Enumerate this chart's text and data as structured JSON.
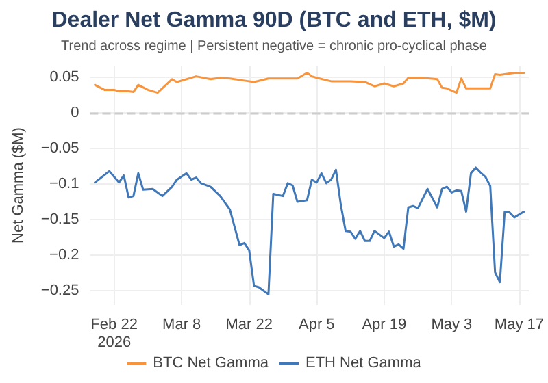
{
  "chart_data": {
    "type": "line",
    "title": "Dealer Net Gamma 90D (BTC and ETH, $M)",
    "subtitle": "Trend across regime | Persistent negative = chronic pro-cyclical phase",
    "ylabel": "Net Gamma ($M)",
    "xlim": [
      "2026-02-17",
      "2026-05-19"
    ],
    "xticks": [
      {
        "value": "2026-02-22",
        "label": "Feb 22\n2026"
      },
      {
        "value": "2026-03-08",
        "label": "Mar 8"
      },
      {
        "value": "2026-03-22",
        "label": "Mar 22"
      },
      {
        "value": "2026-04-05",
        "label": "Apr 5"
      },
      {
        "value": "2026-04-19",
        "label": "Apr 19"
      },
      {
        "value": "2026-05-03",
        "label": "May 3"
      },
      {
        "value": "2026-05-17",
        "label": "May 17"
      }
    ],
    "ylim": [
      -0.27,
      0.066
    ],
    "yticks": [
      {
        "value": -0.25,
        "label": "−0.25"
      },
      {
        "value": -0.2,
        "label": "−0.2"
      },
      {
        "value": -0.15,
        "label": "−0.15"
      },
      {
        "value": -0.1,
        "label": "−0.1"
      },
      {
        "value": -0.05,
        "label": "−0.05"
      },
      0,
      0.05
    ],
    "grid": true,
    "legend": "bottom",
    "marker": "none",
    "line_style": "solid",
    "ref_lines": [
      {
        "axis": "y",
        "value": 0,
        "color": "#cccccc",
        "line_style": "dashed"
      }
    ],
    "series": [
      {
        "name": "BTC Net Gamma",
        "color": "#f7953f",
        "x": [
          "2026-02-18",
          "2026-02-20",
          "2026-02-22",
          "2026-02-23",
          "2026-02-25",
          "2026-02-26",
          "2026-02-27",
          "2026-03-01",
          "2026-03-03",
          "2026-03-06",
          "2026-03-07",
          "2026-03-11",
          "2026-03-14",
          "2026-03-16",
          "2026-03-18",
          "2026-03-21",
          "2026-03-23",
          "2026-03-26",
          "2026-03-29",
          "2026-04-01",
          "2026-04-03",
          "2026-04-04",
          "2026-04-05",
          "2026-04-08",
          "2026-04-12",
          "2026-04-15",
          "2026-04-17",
          "2026-04-19",
          "2026-04-21",
          "2026-04-23",
          "2026-04-24",
          "2026-04-27",
          "2026-04-30",
          "2026-05-01",
          "2026-05-02",
          "2026-05-04",
          "2026-05-05",
          "2026-05-06",
          "2026-05-08",
          "2026-05-11",
          "2026-05-12",
          "2026-05-13",
          "2026-05-16",
          "2026-05-18"
        ],
        "values": [
          0.039,
          0.032,
          0.032,
          0.03,
          0.03,
          0.029,
          0.039,
          0.032,
          0.028,
          0.047,
          0.043,
          0.051,
          0.047,
          0.049,
          0.048,
          0.045,
          0.043,
          0.048,
          0.048,
          0.048,
          0.056,
          0.051,
          0.049,
          0.044,
          0.044,
          0.043,
          0.037,
          0.041,
          0.037,
          0.041,
          0.049,
          0.049,
          0.047,
          0.035,
          0.034,
          0.028,
          0.048,
          0.034,
          0.034,
          0.034,
          0.054,
          0.053,
          0.056,
          0.056
        ]
      },
      {
        "name": "ETH Net Gamma",
        "color": "#4078b8",
        "x": [
          "2026-02-18",
          "2026-02-21",
          "2026-02-23",
          "2026-02-24",
          "2026-02-25",
          "2026-02-26",
          "2026-02-27",
          "2026-02-28",
          "2026-03-02",
          "2026-03-04",
          "2026-03-06",
          "2026-03-07",
          "2026-03-09",
          "2026-03-10",
          "2026-03-11",
          "2026-03-12",
          "2026-03-14",
          "2026-03-16",
          "2026-03-18",
          "2026-03-19",
          "2026-03-20",
          "2026-03-21",
          "2026-03-22",
          "2026-03-23",
          "2026-03-24",
          "2026-03-26",
          "2026-03-27",
          "2026-03-29",
          "2026-03-30",
          "2026-03-31",
          "2026-04-01",
          "2026-04-03",
          "2026-04-04",
          "2026-04-05",
          "2026-04-06",
          "2026-04-07",
          "2026-04-08",
          "2026-04-09",
          "2026-04-10",
          "2026-04-11",
          "2026-04-12",
          "2026-04-13",
          "2026-04-14",
          "2026-04-15",
          "2026-04-16",
          "2026-04-17",
          "2026-04-19",
          "2026-04-20",
          "2026-04-21",
          "2026-04-22",
          "2026-04-23",
          "2026-04-24",
          "2026-04-25",
          "2026-04-26",
          "2026-04-28",
          "2026-04-30",
          "2026-05-01",
          "2026-05-02",
          "2026-05-03",
          "2026-05-04",
          "2026-05-05",
          "2026-05-06",
          "2026-05-07",
          "2026-05-08",
          "2026-05-09",
          "2026-05-10",
          "2026-05-11",
          "2026-05-12",
          "2026-05-13",
          "2026-05-14",
          "2026-05-15",
          "2026-05-16",
          "2026-05-18"
        ],
        "values": [
          -0.098,
          -0.082,
          -0.098,
          -0.088,
          -0.119,
          -0.117,
          -0.085,
          -0.108,
          -0.107,
          -0.117,
          -0.104,
          -0.094,
          -0.085,
          -0.094,
          -0.091,
          -0.099,
          -0.104,
          -0.117,
          -0.136,
          -0.161,
          -0.186,
          -0.183,
          -0.193,
          -0.243,
          -0.245,
          -0.255,
          -0.114,
          -0.117,
          -0.099,
          -0.102,
          -0.125,
          -0.123,
          -0.094,
          -0.098,
          -0.085,
          -0.099,
          -0.094,
          -0.08,
          -0.129,
          -0.166,
          -0.167,
          -0.177,
          -0.166,
          -0.18,
          -0.18,
          -0.166,
          -0.176,
          -0.167,
          -0.188,
          -0.185,
          -0.191,
          -0.133,
          -0.131,
          -0.134,
          -0.107,
          -0.133,
          -0.107,
          -0.104,
          -0.112,
          -0.109,
          -0.11,
          -0.139,
          -0.085,
          -0.077,
          -0.084,
          -0.09,
          -0.103,
          -0.224,
          -0.238,
          -0.139,
          -0.14,
          -0.147,
          -0.139
        ]
      }
    ]
  }
}
